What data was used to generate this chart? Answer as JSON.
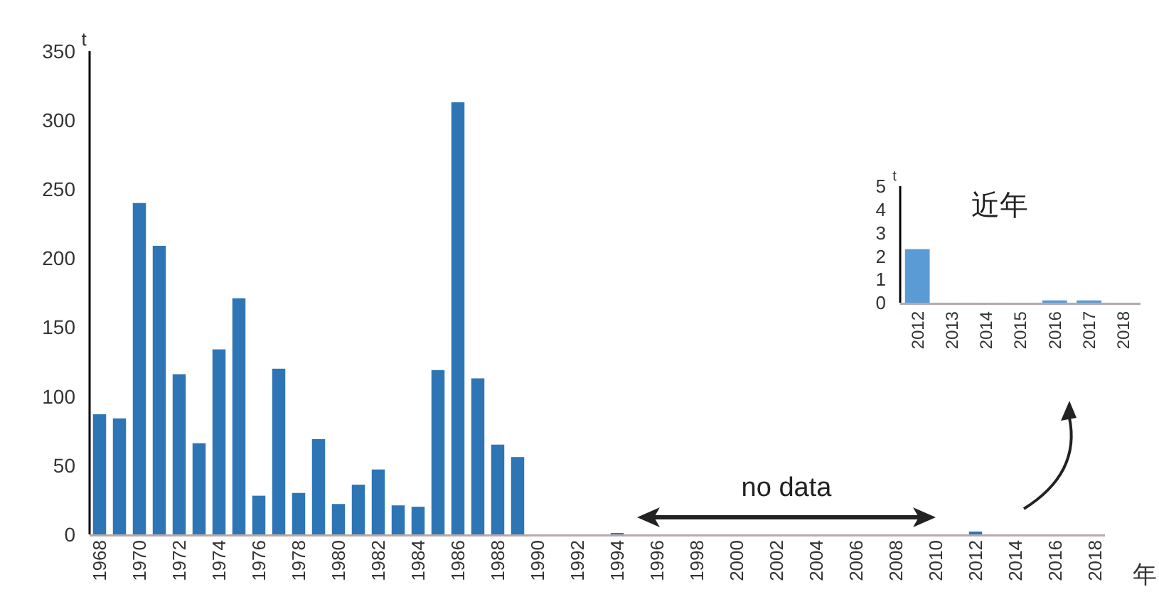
{
  "chart_data": [
    {
      "type": "bar",
      "xlabel": "年",
      "ylabel": "t",
      "color": "#2e75b6",
      "categories": [
        "1968",
        null,
        "1970",
        null,
        "1972",
        null,
        "1974",
        null,
        "1976",
        null,
        "1978",
        null,
        "1980",
        null,
        "1982",
        null,
        "1984",
        null,
        "1986",
        null,
        "1988",
        null,
        "1990",
        null,
        "1992",
        null,
        "1994",
        null,
        "1996",
        null,
        "1998",
        null,
        "2000",
        null,
        "2002",
        null,
        "2004",
        null,
        "2006",
        null,
        "2008",
        null,
        "2010",
        null,
        "2012",
        null,
        "2014",
        null,
        "2016",
        null,
        "2018"
      ],
      "values": [
        87,
        84,
        240,
        209,
        116,
        66,
        134,
        171,
        28,
        120,
        30,
        69,
        22,
        36,
        47,
        21,
        20,
        119,
        313,
        113,
        65,
        56,
        0,
        0,
        0,
        0,
        1,
        null,
        null,
        null,
        null,
        null,
        null,
        null,
        null,
        null,
        null,
        null,
        null,
        null,
        null,
        null,
        null,
        0,
        2,
        0,
        0,
        0,
        null,
        null,
        0
      ],
      "ylim": [
        0,
        350
      ],
      "yticks": [
        0,
        50,
        100,
        150,
        200,
        250,
        300,
        350
      ],
      "annotations": [
        "no data"
      ]
    },
    {
      "type": "bar",
      "title": "近年",
      "ylabel": "t",
      "color": "#5b9bd5",
      "categories": [
        "2012",
        "2013",
        "2014",
        "2015",
        "2016",
        "2017",
        "2018"
      ],
      "values": [
        2.3,
        0,
        0,
        0,
        0.1,
        0.1,
        0
      ],
      "ylim": [
        0,
        5
      ],
      "yticks": [
        0,
        1,
        2,
        3,
        4,
        5
      ]
    }
  ]
}
